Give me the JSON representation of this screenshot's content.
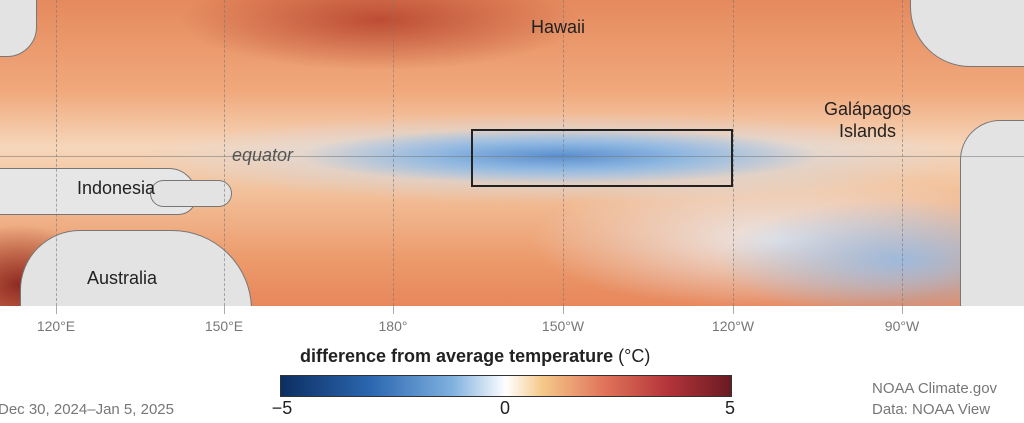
{
  "map": {
    "labels": {
      "hawaii": "Hawaii",
      "galapagos_line1": "Galápagos",
      "galapagos_line2": "Islands",
      "equator": "equator",
      "indonesia": "Indonesia",
      "australia": "Australia"
    },
    "longitude_ticks": [
      "120°E",
      "150°E",
      "180°",
      "150°W",
      "120°W",
      "90°W"
    ],
    "highlight_region": "Niño 3.4 box outline"
  },
  "legend": {
    "title": "difference from average temperature",
    "unit": "(°C)",
    "min_label": "−5",
    "mid_label": "0",
    "max_label": "5",
    "colors": [
      "#0c2f62",
      "#2b67b0",
      "#7fb0df",
      "#ffffff",
      "#f5c98a",
      "#e0735a",
      "#b4343a",
      "#6a1a22"
    ]
  },
  "footer": {
    "date_range": "Dec 30, 2024–Jan 5, 2025",
    "credit": "NOAA Climate.gov",
    "source": "Data: NOAA View"
  }
}
